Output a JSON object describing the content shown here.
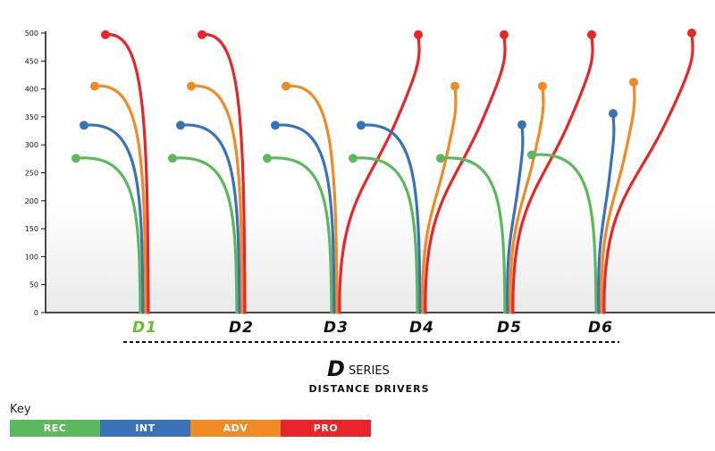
{
  "chart_data": {
    "type": "line",
    "title": "SERIES",
    "title_logo_letter": "D",
    "subtitle": "DISTANCE DRIVERS",
    "ylim": [
      0,
      500
    ],
    "y_ticks": [
      0,
      50,
      100,
      150,
      200,
      250,
      300,
      350,
      400,
      450,
      500
    ],
    "grid": false,
    "categories": [
      "D1",
      "D2",
      "D3",
      "D4",
      "D5",
      "D6"
    ],
    "highlight_category": "D1",
    "skill_levels": [
      "REC",
      "INT",
      "ADV",
      "PRO"
    ],
    "series": [
      {
        "name": "REC",
        "color": "#5cb85c",
        "values": [
          276,
          276,
          276,
          276,
          276,
          282
        ]
      },
      {
        "name": "INT",
        "color": "#3a72b8",
        "values": [
          335,
          335,
          335,
          335,
          336,
          356
        ]
      },
      {
        "name": "ADV",
        "color": "#f08a24",
        "values": [
          405,
          405,
          405,
          405,
          405,
          412
        ]
      },
      {
        "name": "PRO",
        "color": "#e8262a",
        "values": [
          497,
          497,
          497,
          497,
          497,
          500
        ]
      }
    ],
    "end_side": [
      [
        "left",
        "left",
        "left",
        "left"
      ],
      [
        "left",
        "left",
        "left",
        "left"
      ],
      [
        "left",
        "left",
        "left",
        "right"
      ],
      [
        "left",
        "left",
        "right",
        "right"
      ],
      [
        "left",
        "right",
        "right",
        "right"
      ],
      [
        "left",
        "right",
        "right",
        "right"
      ]
    ]
  },
  "key": {
    "title": "Key",
    "items": [
      {
        "label": "REC",
        "color": "#5cb85c"
      },
      {
        "label": "INT",
        "color": "#3a72b8"
      },
      {
        "label": "ADV",
        "color": "#f08a24"
      },
      {
        "label": "PRO",
        "color": "#e8262a"
      }
    ]
  }
}
